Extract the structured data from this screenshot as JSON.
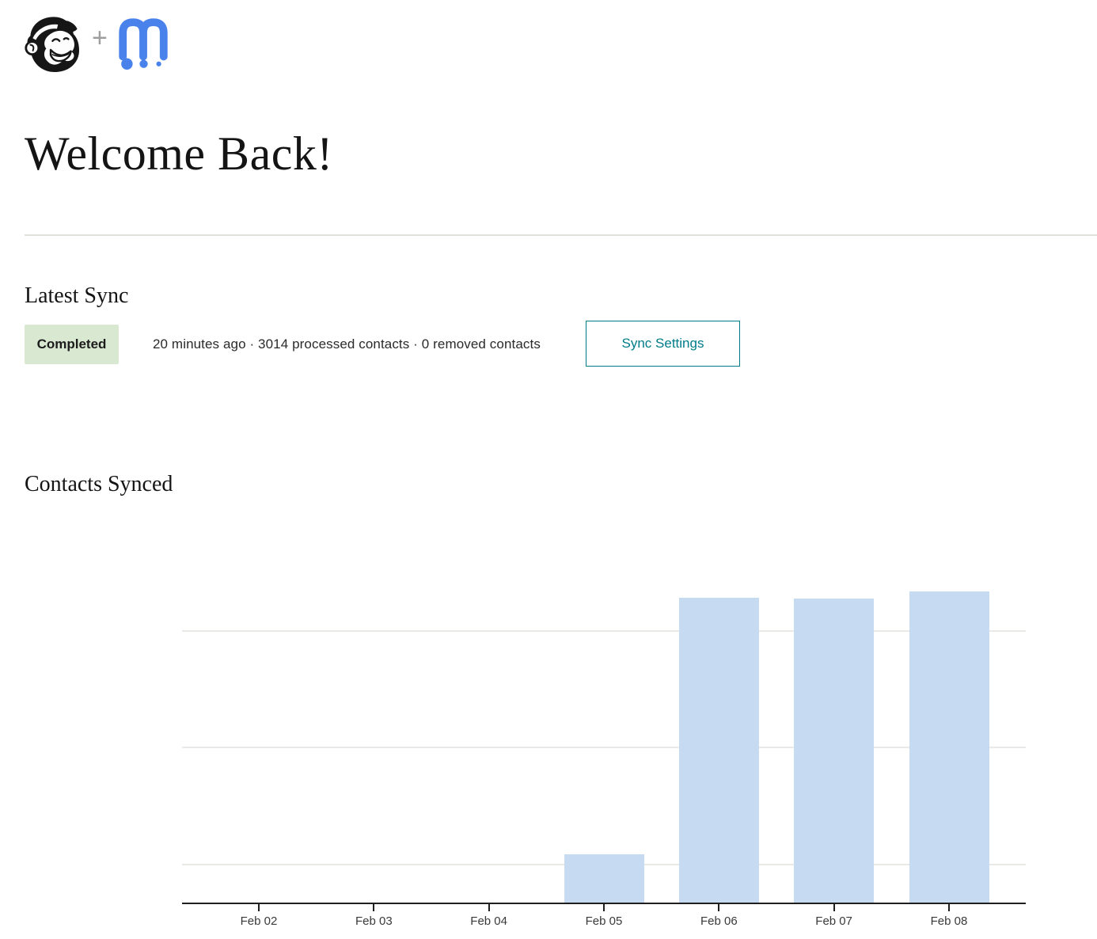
{
  "header": {
    "icons": {
      "mailchimp": "mailchimp-freddie-icon",
      "plus": "plus-icon",
      "partner": "m-dots-logo-icon"
    },
    "plus_glyph": "+",
    "partner_brand_blue": "#4a82ec",
    "freddie_color": "#161616"
  },
  "page": {
    "title": "Welcome Back!"
  },
  "latest_sync": {
    "heading": "Latest Sync",
    "status_label": "Completed",
    "status_bg": "#d9e8d1",
    "summary": "20 minutes ago · 3014 processed contacts · 0 removed contacts",
    "sync_settings_label": "Sync Settings",
    "accent_teal": "#007c89"
  },
  "contacts_synced": {
    "heading": "Contacts Synced"
  },
  "chart_data": {
    "type": "bar",
    "title": "Contacts Synced",
    "categories": [
      "Feb 02",
      "Feb 03",
      "Feb 04",
      "Feb 05",
      "Feb 06",
      "Feb 07",
      "Feb 08"
    ],
    "values": [
      0,
      0,
      0,
      160,
      985,
      983,
      1005
    ],
    "xlabel": "",
    "ylabel": "",
    "ylim": [
      0,
      1150
    ],
    "gridline_values": [
      125,
      500,
      875
    ],
    "grid": "horizontal-only",
    "y_tick_labels_visible": false,
    "legend": "none",
    "bar_color": "#c6dbf2",
    "gridline_color": "#e9e9e6",
    "axis_color": "#1f1f1f"
  }
}
